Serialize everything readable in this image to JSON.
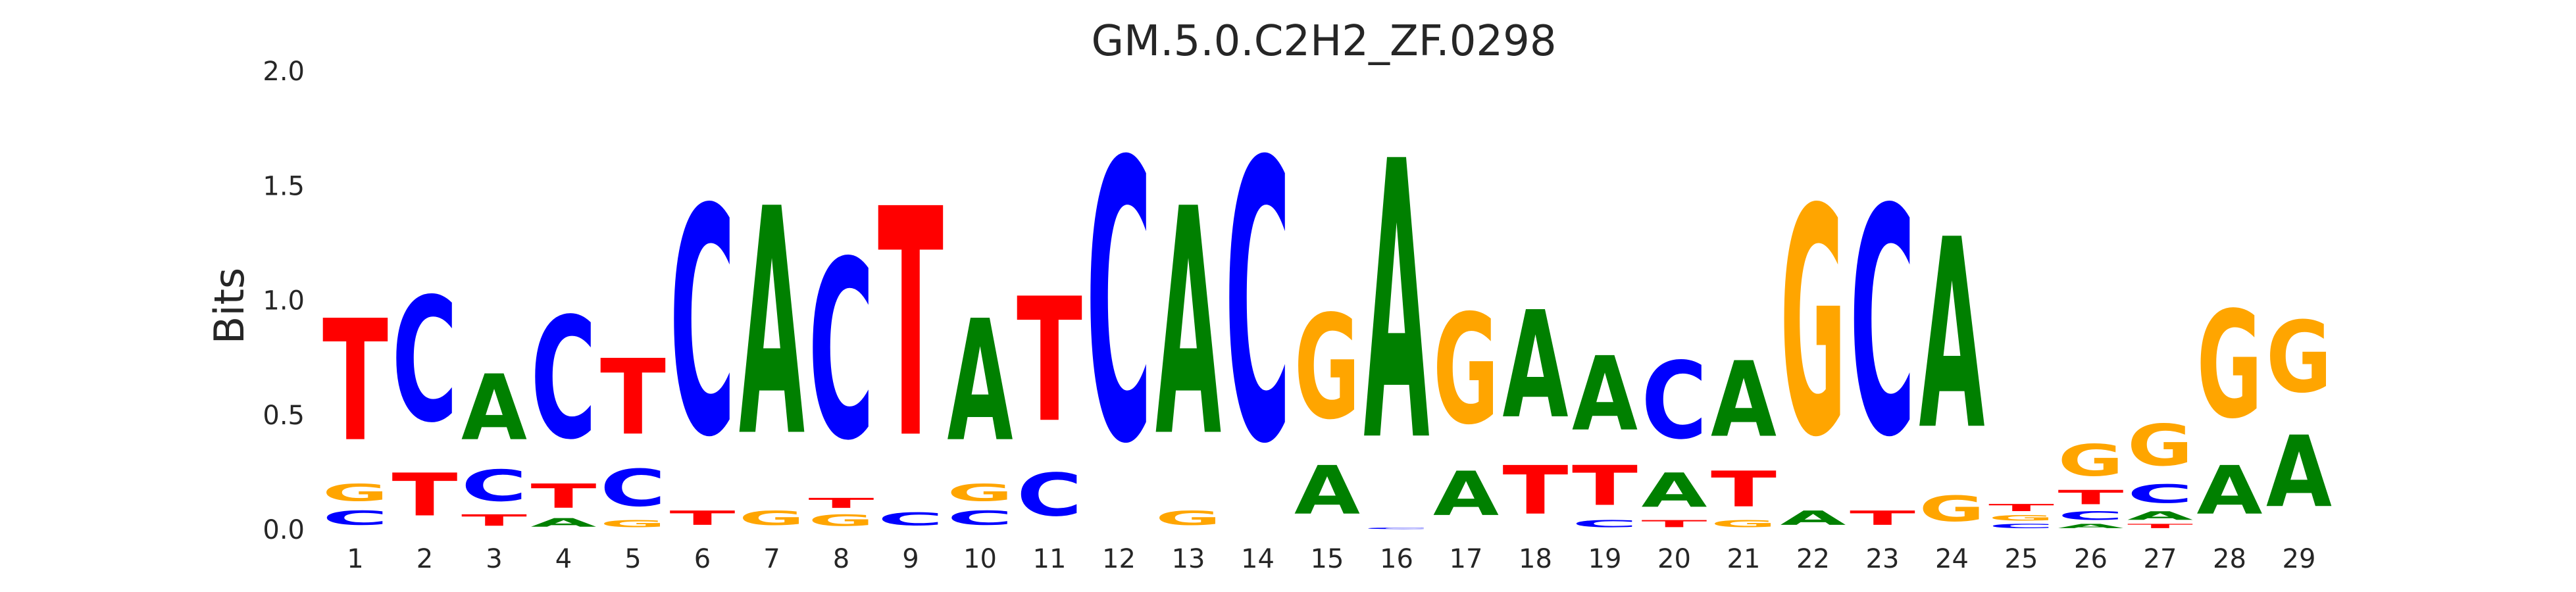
{
  "chart_data": {
    "type": "sequence-logo",
    "title": "GM.5.0.C2H2_ZF.0298",
    "xlabel": "",
    "ylabel": "Bits",
    "ylim": [
      0,
      2
    ],
    "y_ticks": [
      "0.0",
      "0.5",
      "1.0",
      "1.5",
      "2.0"
    ],
    "grid": false,
    "legend": "none",
    "colors": {
      "A": "#008000",
      "C": "#0000ff",
      "G": "#ffa500",
      "T": "#ff0000"
    },
    "positions": [
      {
        "pos": "1",
        "stack": [
          {
            "base": "C",
            "bits": 0.1
          },
          {
            "base": "G",
            "bits": 0.12
          },
          {
            "base": "T",
            "bits": 0.85
          }
        ]
      },
      {
        "pos": "2",
        "stack": [
          {
            "base": "T",
            "bits": 0.3
          },
          {
            "base": "C",
            "bits": 0.87
          }
        ]
      },
      {
        "pos": "3",
        "stack": [
          {
            "base": "T",
            "bits": 0.08
          },
          {
            "base": "C",
            "bits": 0.22
          },
          {
            "base": "A",
            "bits": 0.46
          }
        ]
      },
      {
        "pos": "4",
        "stack": [
          {
            "base": "A",
            "bits": 0.06
          },
          {
            "base": "T",
            "bits": 0.17
          },
          {
            "base": "C",
            "bits": 0.85
          }
        ]
      },
      {
        "pos": "5",
        "stack": [
          {
            "base": "G",
            "bits": 0.05
          },
          {
            "base": "C",
            "bits": 0.26
          },
          {
            "base": "T",
            "bits": 0.53
          }
        ]
      },
      {
        "pos": "6",
        "stack": [
          {
            "base": "T",
            "bits": 0.1
          },
          {
            "base": "C",
            "bits": 1.59
          }
        ]
      },
      {
        "pos": "7",
        "stack": [
          {
            "base": "G",
            "bits": 0.1
          },
          {
            "base": "A",
            "bits": 1.59
          }
        ]
      },
      {
        "pos": "8",
        "stack": [
          {
            "base": "G",
            "bits": 0.08
          },
          {
            "base": "T",
            "bits": 0.07
          },
          {
            "base": "C",
            "bits": 1.25
          }
        ]
      },
      {
        "pos": "9",
        "stack": [
          {
            "base": "C",
            "bits": 0.09
          },
          {
            "base": "T",
            "bits": 1.6
          }
        ]
      },
      {
        "pos": "10",
        "stack": [
          {
            "base": "C",
            "bits": 0.1
          },
          {
            "base": "G",
            "bits": 0.12
          },
          {
            "base": "A",
            "bits": 0.85
          }
        ]
      },
      {
        "pos": "11",
        "stack": [
          {
            "base": "C",
            "bits": 0.3
          },
          {
            "base": "T",
            "bits": 0.87
          }
        ]
      },
      {
        "pos": "12",
        "stack": [
          {
            "base": "C",
            "bits": 1.96
          }
        ]
      },
      {
        "pos": "13",
        "stack": [
          {
            "base": "G",
            "bits": 0.1
          },
          {
            "base": "A",
            "bits": 1.59
          }
        ]
      },
      {
        "pos": "14",
        "stack": [
          {
            "base": "C",
            "bits": 1.96
          }
        ]
      },
      {
        "pos": "15",
        "stack": [
          {
            "base": "A",
            "bits": 0.34
          },
          {
            "base": "G",
            "bits": 0.73
          }
        ]
      },
      {
        "pos": "16",
        "stack": [
          {
            "base": "C",
            "bits": 0.01
          },
          {
            "base": "A",
            "bits": 1.95
          }
        ]
      },
      {
        "pos": "17",
        "stack": [
          {
            "base": "A",
            "bits": 0.31
          },
          {
            "base": "G",
            "bits": 0.77
          }
        ]
      },
      {
        "pos": "18",
        "stack": [
          {
            "base": "T",
            "bits": 0.34
          },
          {
            "base": "A",
            "bits": 0.75
          }
        ]
      },
      {
        "pos": "19",
        "stack": [
          {
            "base": "C",
            "bits": 0.05
          },
          {
            "base": "T",
            "bits": 0.28
          },
          {
            "base": "A",
            "bits": 0.52
          }
        ]
      },
      {
        "pos": "20",
        "stack": [
          {
            "base": "T",
            "bits": 0.05
          },
          {
            "base": "A",
            "bits": 0.24
          },
          {
            "base": "C",
            "bits": 0.54
          }
        ]
      },
      {
        "pos": "21",
        "stack": [
          {
            "base": "G",
            "bits": 0.05
          },
          {
            "base": "T",
            "bits": 0.25
          },
          {
            "base": "A",
            "bits": 0.53
          }
        ]
      },
      {
        "pos": "22",
        "stack": [
          {
            "base": "A",
            "bits": 0.1
          },
          {
            "base": "G",
            "bits": 1.59
          }
        ]
      },
      {
        "pos": "23",
        "stack": [
          {
            "base": "T",
            "bits": 0.1
          },
          {
            "base": "C",
            "bits": 1.59
          }
        ]
      },
      {
        "pos": "24",
        "stack": [
          {
            "base": "G",
            "bits": 0.18
          },
          {
            "base": "A",
            "bits": 1.33
          }
        ]
      },
      {
        "pos": "25",
        "stack": [
          {
            "base": "C",
            "bits": 0.03
          },
          {
            "base": "G",
            "bits": 0.04
          },
          {
            "base": "T",
            "bits": 0.05
          }
        ]
      },
      {
        "pos": "26",
        "stack": [
          {
            "base": "A",
            "bits": 0.03
          },
          {
            "base": "C",
            "bits": 0.06
          },
          {
            "base": "T",
            "bits": 0.1
          },
          {
            "base": "G",
            "bits": 0.22
          }
        ]
      },
      {
        "pos": "27",
        "stack": [
          {
            "base": "T",
            "bits": 0.03
          },
          {
            "base": "A",
            "bits": 0.06
          },
          {
            "base": "C",
            "bits": 0.13
          },
          {
            "base": "G",
            "bits": 0.29
          }
        ]
      },
      {
        "pos": "28",
        "stack": [
          {
            "base": "A",
            "bits": 0.34
          },
          {
            "base": "G",
            "bits": 0.75
          }
        ]
      },
      {
        "pos": "29",
        "stack": [
          {
            "base": "A",
            "bits": 0.5
          },
          {
            "base": "G",
            "bits": 0.5
          }
        ]
      }
    ]
  }
}
